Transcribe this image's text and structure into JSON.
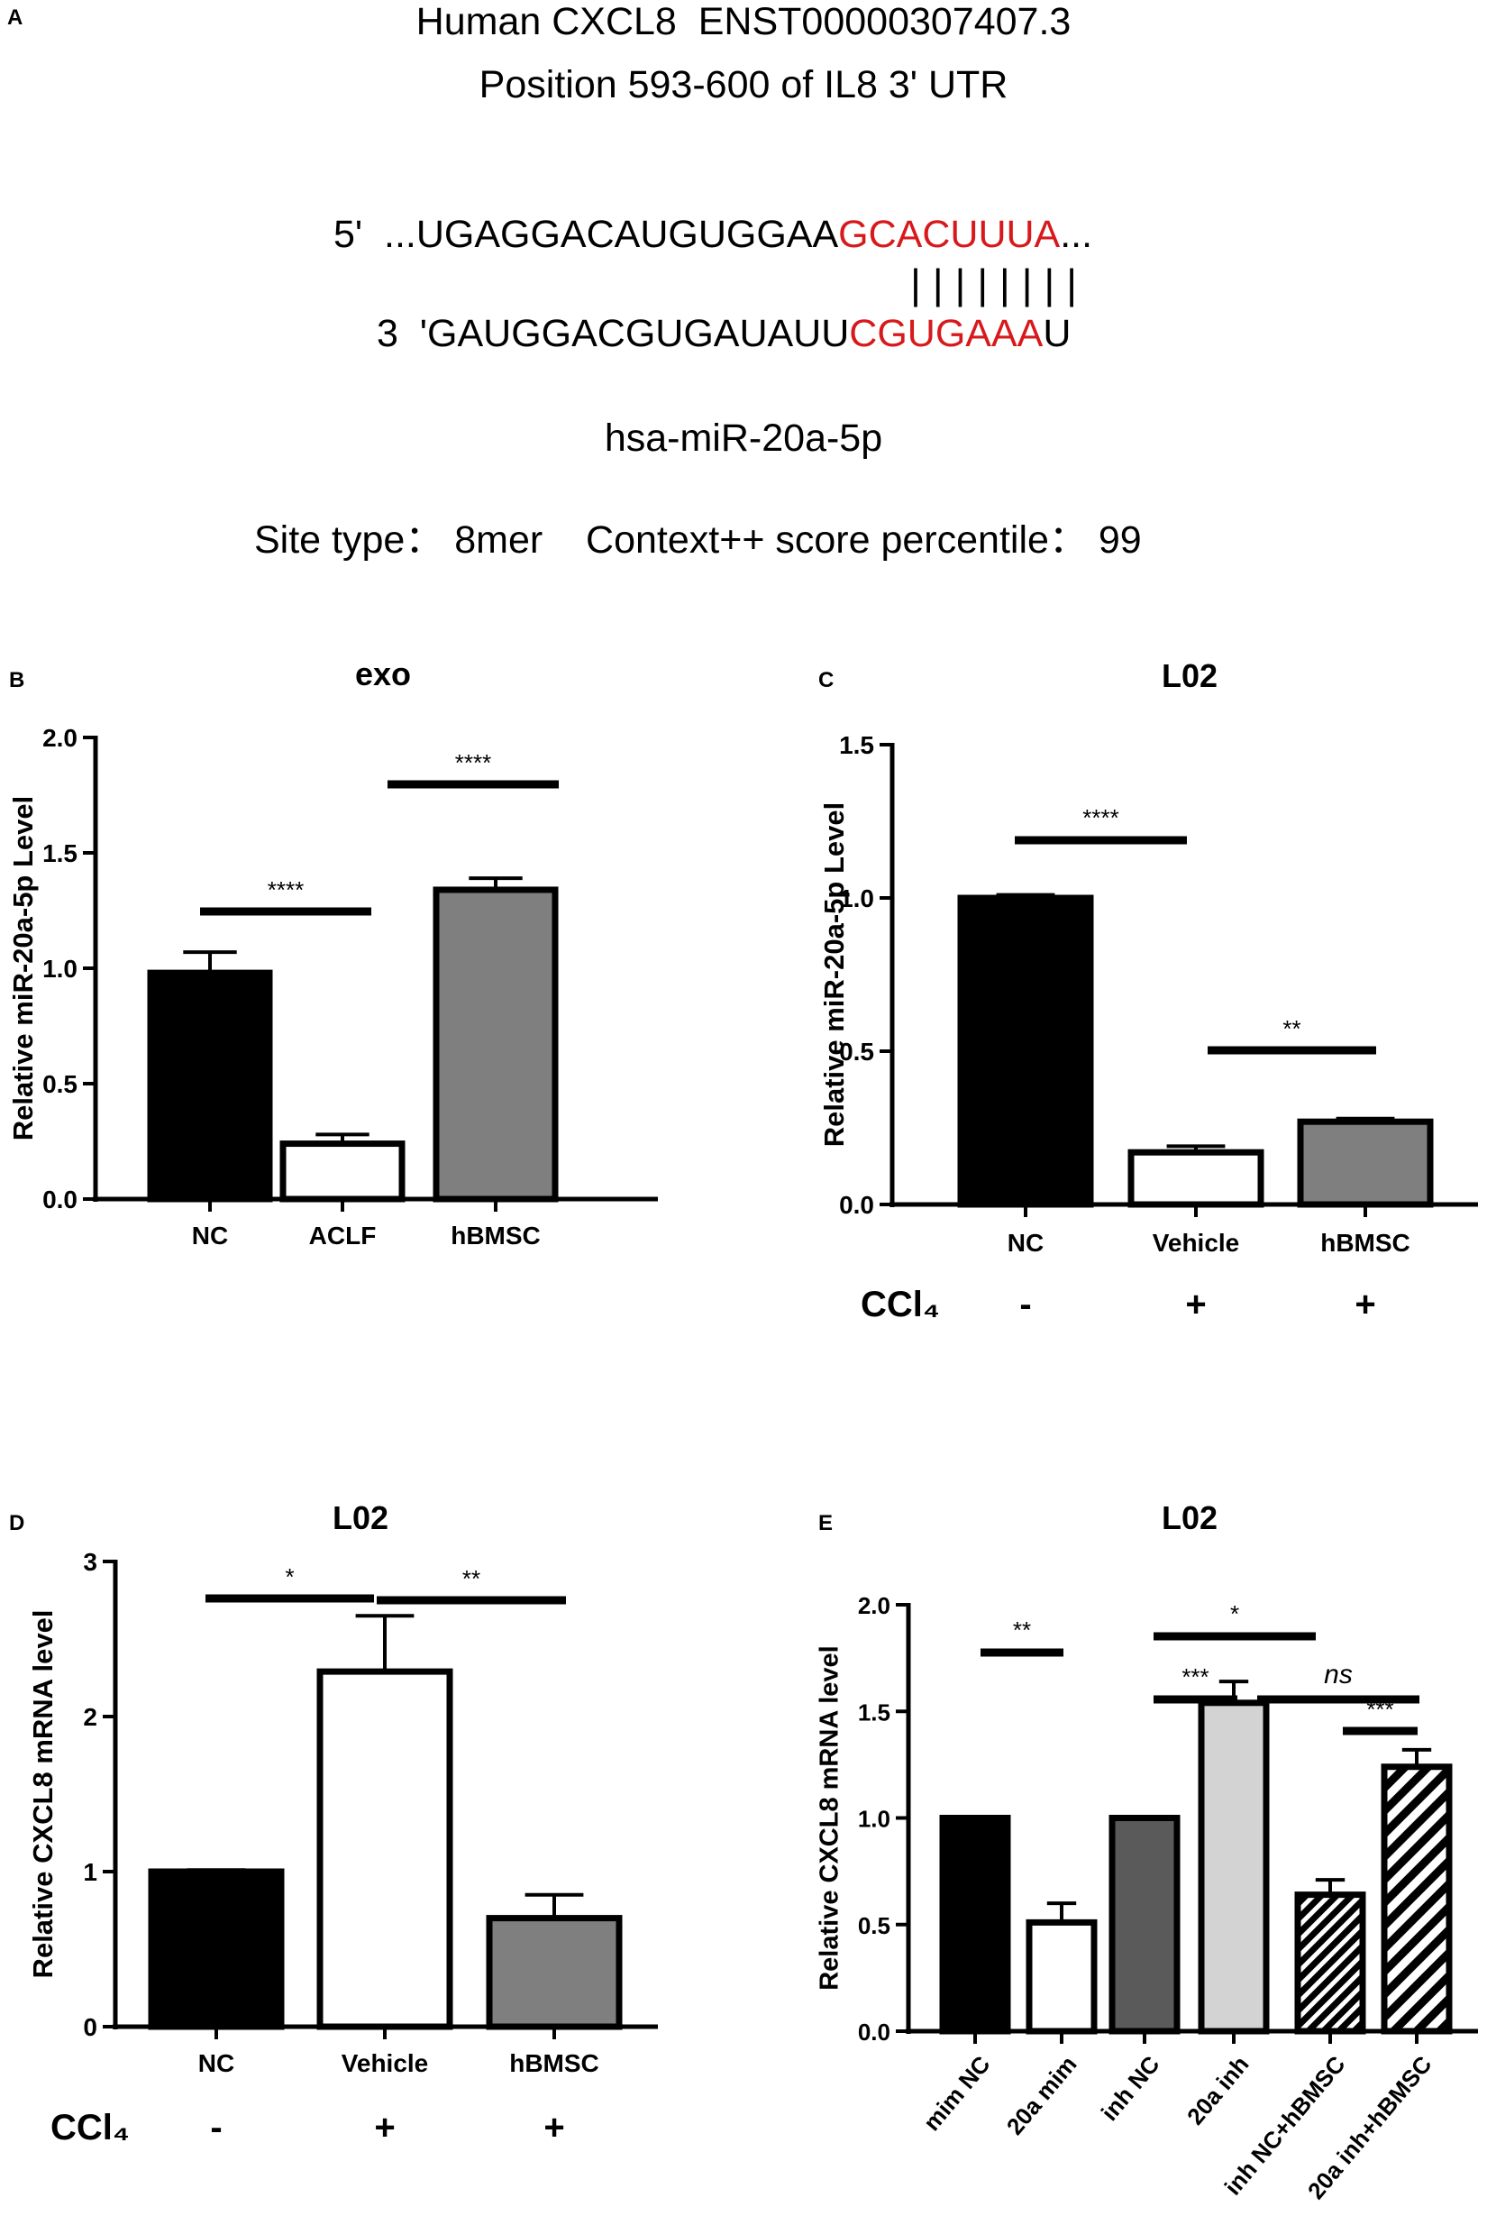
{
  "colors": {
    "accent_red": "#d7191c",
    "black": "#000000",
    "gray": "#7f7f7f",
    "dark_gray": "#5a5a5a",
    "light_gray": "#d3d3d3"
  },
  "panel_a": {
    "letter": "A",
    "title_line1": "Human CXCL8  ENST00000307407.3",
    "title_line2": "Position 593-600 of IL8 3' UTR",
    "mrna_prefix": "5'  ...UGAGGACAUGUGGAA",
    "mrna_seed": "GCACUUUA",
    "mrna_suffix": "...",
    "pairing": "| | | | | | | |",
    "mirna_prefix": "3  'GAUGGACGUGAUAUU",
    "mirna_seed": "CGUGAAA",
    "mirna_suffix": "U",
    "mirna_name": "hsa-miR-20a-5p",
    "site_type": "Site type： 8mer    Context++ score percentile： 99"
  },
  "chart_data": [
    {
      "panel": "B",
      "type": "bar",
      "title": "exo",
      "ylabel": "Relative miR-20a-5p Level",
      "ylim": [
        0,
        2.0
      ],
      "yticks": [
        "0.0",
        "0.5",
        "1.0",
        "1.5",
        "2.0"
      ],
      "categories": [
        "NC",
        "ACLF",
        "hBMSC"
      ],
      "values": [
        0.98,
        0.24,
        1.34
      ],
      "errors": [
        0.09,
        0.04,
        0.05
      ],
      "significance": [
        {
          "label": "****"
        },
        {
          "label": "****"
        }
      ]
    },
    {
      "panel": "C",
      "type": "bar",
      "title": "L02",
      "ylabel": "Relative miR-20a-5p Level",
      "ylim": [
        0,
        1.5
      ],
      "yticks": [
        "0.0",
        "0.5",
        "1.0",
        "1.5"
      ],
      "categories": [
        "NC",
        "Vehicle",
        "hBMSC"
      ],
      "values": [
        1.0,
        0.17,
        0.27
      ],
      "errors": [
        0.01,
        0.02,
        0.01
      ],
      "treatment_label": "CCl₄",
      "treatment": [
        "-",
        "+",
        "+"
      ],
      "significance": [
        {
          "label": "****"
        },
        {
          "label": "**"
        }
      ]
    },
    {
      "panel": "D",
      "type": "bar",
      "title": "L02",
      "ylabel": "Relative CXCL8 mRNA level",
      "ylim": [
        0,
        3
      ],
      "yticks": [
        "0",
        "1",
        "2",
        "3"
      ],
      "categories": [
        "NC",
        "Vehicle",
        "hBMSC"
      ],
      "values": [
        1.0,
        2.29,
        0.7
      ],
      "errors": [
        0.01,
        0.36,
        0.15
      ],
      "treatment_label": "CCl₄",
      "treatment": [
        "-",
        "+",
        "+"
      ],
      "significance": [
        {
          "label": "*"
        },
        {
          "label": "**"
        }
      ]
    },
    {
      "panel": "E",
      "type": "bar",
      "title": "L02",
      "ylabel": "Relative CXCL8 mRNA level",
      "ylim": [
        0,
        2.0
      ],
      "yticks": [
        "0.0",
        "0.5",
        "1.0",
        "1.5",
        "2.0"
      ],
      "categories": [
        "mim NC",
        "20a mim",
        "inh NC",
        "20a inh",
        "inh NC+hBMSC",
        "20a inh+hBMSC"
      ],
      "values": [
        1.0,
        0.51,
        1.0,
        1.54,
        0.64,
        1.24
      ],
      "errors": [
        0.0,
        0.09,
        0.0,
        0.1,
        0.07,
        0.08
      ],
      "significance": [
        {
          "label": "**"
        },
        {
          "label": "***"
        },
        {
          "label": "*"
        },
        {
          "label": "ns"
        },
        {
          "label": "***"
        }
      ]
    }
  ]
}
